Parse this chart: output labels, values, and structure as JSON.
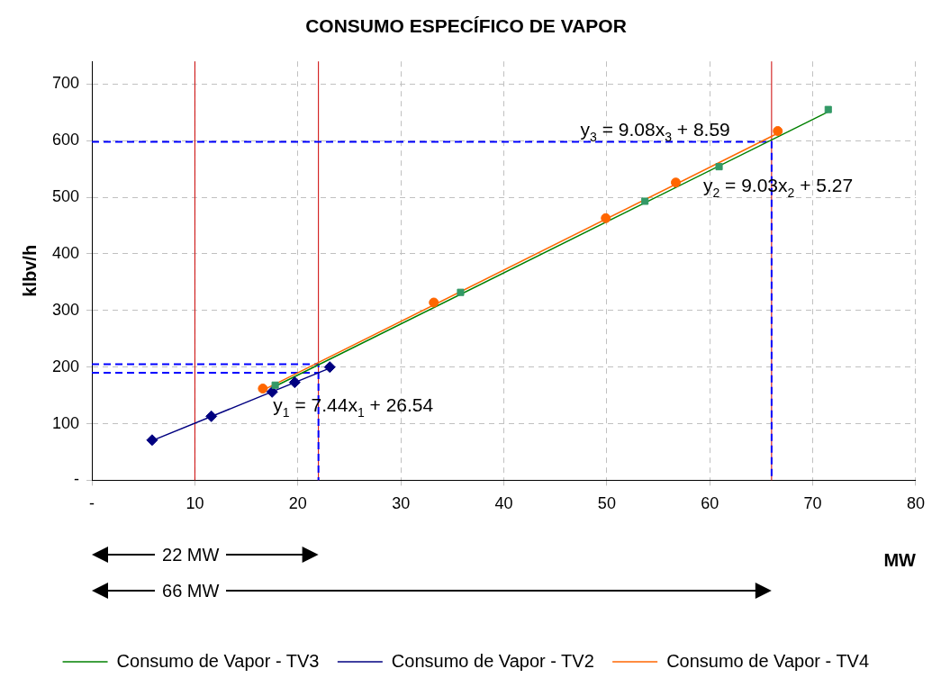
{
  "chart_data": {
    "type": "scatter",
    "title": "CONSUMO ESPECÍFICO DE VAPOR",
    "xlabel": "MW",
    "ylabel": "klbv/h",
    "xlim": [
      0,
      80
    ],
    "ylim": [
      0,
      740
    ],
    "xticks": [
      {
        "value": 0,
        "label": "-"
      },
      10,
      20,
      30,
      40,
      50,
      60,
      70,
      80
    ],
    "yticks": [
      {
        "value": 0,
        "label": "-"
      },
      100,
      200,
      300,
      400,
      500,
      600,
      700
    ],
    "grid": true,
    "legend": "bottom",
    "series": [
      {
        "type": "line",
        "name": "Consumo de Vapor - TV3",
        "color": "#008000",
        "x": [
          17.8,
          71.5
        ],
        "values": [
          166,
          651
        ],
        "marker": "none"
      },
      {
        "type": "line",
        "name": "Consumo de Vapor - TV2",
        "color": "#000080",
        "x": [
          5.85,
          23.1
        ],
        "values": [
          70,
          198
        ],
        "marker": "none"
      },
      {
        "type": "line",
        "name": "Consumo de Vapor - TV4",
        "color": "#ff6600",
        "x": [
          16.6,
          66.6
        ],
        "values": [
          159,
          613
        ],
        "marker": "none"
      },
      {
        "type": "line",
        "color": "#0000ff",
        "line_style": "dashed",
        "marker": "none",
        "x": [
          0,
          22,
          22
        ],
        "values": [
          205,
          205,
          0
        ]
      },
      {
        "type": "line",
        "color": "#0000ff",
        "line_style": "dashed",
        "marker": "none",
        "x": [
          0,
          22
        ],
        "values": [
          190,
          190
        ]
      },
      {
        "type": "line",
        "color": "#0000ff",
        "line_style": "dashed",
        "marker": "none",
        "x": [
          0,
          66,
          66
        ],
        "values": [
          598,
          598,
          0
        ]
      },
      {
        "type": "scatter",
        "color": "#339966",
        "marker": "square",
        "x": [
          17.8,
          35.8,
          53.7,
          60.9,
          71.5
        ],
        "values": [
          168,
          332,
          493,
          554,
          655
        ]
      },
      {
        "type": "scatter",
        "color": "#000080",
        "marker": "diamond",
        "x": [
          5.85,
          11.6,
          17.5,
          19.7,
          23.1
        ],
        "values": [
          71,
          113,
          156,
          173,
          200
        ]
      },
      {
        "type": "scatter",
        "color": "#ff6600",
        "marker": "circle",
        "x": [
          16.6,
          33.2,
          49.9,
          56.7,
          66.6
        ],
        "values": [
          162,
          314,
          463,
          526,
          617
        ]
      }
    ],
    "ref_lines": [
      {
        "axis": "x",
        "value": 10,
        "color": "#cc0000"
      },
      {
        "axis": "x",
        "value": 22,
        "color": "#cc0000"
      },
      {
        "axis": "x",
        "value": 66,
        "color": "#cc0000"
      }
    ],
    "annotations": [
      "y$_{1}$ = 7.44x$_{1}$ + 26.54",
      "y$_{2}$ = 9.03x$_{2}$ + 5.27",
      "y$_{3}$ = 9.08x$_{3}$ + 8.59",
      "22 MW",
      "66 MW"
    ]
  }
}
